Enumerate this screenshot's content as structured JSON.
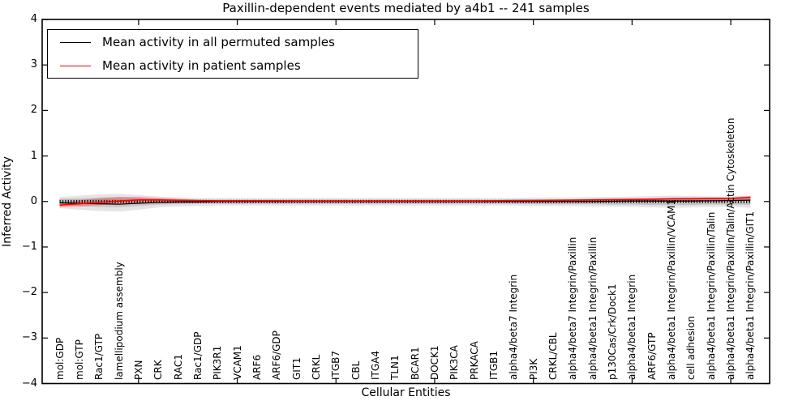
{
  "legend": {
    "items": [
      {
        "label": "Mean activity in all permuted samples",
        "color": "#000000"
      },
      {
        "label": "Mean activity in patient samples",
        "color": "#ff0000"
      }
    ]
  },
  "chart_data": {
    "type": "line",
    "title": "Paxillin-dependent events mediated by a4b1 -- 241 samples",
    "xlabel": "Cellular Entities",
    "ylabel": "Inferred Activity",
    "ylim": [
      -4,
      4
    ],
    "grid": false,
    "legend_position": "upper left",
    "yticks": [
      {
        "value": 4,
        "label": "4"
      },
      {
        "value": 3,
        "label": "3"
      },
      {
        "value": 2,
        "label": "2"
      },
      {
        "value": 1,
        "label": "1"
      },
      {
        "value": 0,
        "label": "0"
      },
      {
        "value": -1,
        "label": "−1"
      },
      {
        "value": -2,
        "label": "−2"
      },
      {
        "value": -3,
        "label": "−3"
      },
      {
        "value": -4,
        "label": "−4"
      }
    ],
    "xtick_mark_indices": [
      4,
      9,
      14,
      19,
      24,
      29,
      34
    ],
    "categories": [
      "mol:GDP",
      "mol:GTP",
      "Rac1/GTP",
      "lamellipodium assembly",
      "PXN",
      "CRK",
      "RAC1",
      "Rac1/GDP",
      "PIK3R1",
      "VCAM1",
      "ARF6",
      "ARF6/GDP",
      "GIT1",
      "CRKL",
      "ITGB7",
      "CBL",
      "ITGA4",
      "TLN1",
      "BCAR1",
      "DOCK1",
      "PIK3CA",
      "PRKACA",
      "ITGB1",
      "alpha4/beta7 Integrin",
      "PI3K",
      "CRKL/CBL",
      "alpha4/beta7 Integrin/Paxillin",
      "alpha4/beta1 Integrin/Paxillin",
      "p130Cas/Crk/Dock1",
      "alpha4/beta1 Integrin",
      "ARF6/GTP",
      "alpha4/beta1 Integrin/Paxillin/VCAM1",
      "cell adhesion",
      "alpha4/beta1 Integrin/Paxillin/Talin",
      "alpha4/beta1 Integrin/Paxillin/Talin/Actin Cytoskeleton",
      "alpha4/beta1 Integrin/Paxillin/GIT1"
    ],
    "series": [
      {
        "name": "Mean activity in all permuted samples",
        "color": "#000000",
        "width": 1.3,
        "values": [
          -0.03,
          -0.04,
          -0.05,
          -0.06,
          -0.04,
          -0.02,
          -0.01,
          -0.01,
          0,
          0,
          0,
          0,
          0,
          0,
          0,
          0,
          0,
          0,
          0,
          0,
          0,
          0,
          0,
          0,
          0,
          0,
          0,
          0,
          0.005,
          0.01,
          0.01,
          0.01,
          0.01,
          0.015,
          0.02,
          0.03
        ]
      },
      {
        "name": "Mean activity in patient samples",
        "color": "#ff0000",
        "width": 1.6,
        "values": [
          -0.08,
          -0.05,
          -0.02,
          0.01,
          0.035,
          0.035,
          0.025,
          0.02,
          0.015,
          0.015,
          0.015,
          0.015,
          0.01,
          0.01,
          0.01,
          0.01,
          0.01,
          0.01,
          0.01,
          0.01,
          0.01,
          0.01,
          0.015,
          0.02,
          0.02,
          0.025,
          0.03,
          0.035,
          0.04,
          0.045,
          0.05,
          0.06,
          0.06,
          0.065,
          0.065,
          0.09
        ]
      }
    ],
    "bands": [
      {
        "name": "permuted-std-outer",
        "color": "rgba(0,0,0,0.10)",
        "upper": [
          0.1,
          0.13,
          0.16,
          0.17,
          0.14,
          0.11,
          0.09,
          0.08,
          0.08,
          0.08,
          0.08,
          0.08,
          0.08,
          0.08,
          0.08,
          0.08,
          0.08,
          0.08,
          0.08,
          0.08,
          0.08,
          0.08,
          0.08,
          0.08,
          0.09,
          0.09,
          0.09,
          0.1,
          0.1,
          0.11,
          0.12,
          0.13,
          0.12,
          0.11,
          0.11,
          0.13
        ],
        "lower": [
          -0.15,
          -0.18,
          -0.21,
          -0.22,
          -0.18,
          -0.13,
          -0.11,
          -0.1,
          -0.09,
          -0.09,
          -0.09,
          -0.09,
          -0.09,
          -0.09,
          -0.09,
          -0.09,
          -0.09,
          -0.09,
          -0.09,
          -0.09,
          -0.09,
          -0.09,
          -0.09,
          -0.09,
          -0.1,
          -0.1,
          -0.1,
          -0.11,
          -0.11,
          -0.12,
          -0.13,
          -0.14,
          -0.13,
          -0.12,
          -0.12,
          -0.14
        ]
      },
      {
        "name": "permuted-std-inner",
        "color": "rgba(0,0,0,0.13)",
        "upper": [
          0.06,
          0.07,
          0.09,
          0.1,
          0.08,
          0.06,
          0.05,
          0.04,
          0.04,
          0.04,
          0.04,
          0.04,
          0.04,
          0.04,
          0.04,
          0.04,
          0.04,
          0.04,
          0.04,
          0.04,
          0.04,
          0.04,
          0.04,
          0.05,
          0.05,
          0.05,
          0.05,
          0.06,
          0.06,
          0.06,
          0.07,
          0.07,
          0.07,
          0.06,
          0.06,
          0.07
        ],
        "lower": [
          -0.08,
          -0.1,
          -0.12,
          -0.13,
          -0.1,
          -0.07,
          -0.06,
          -0.05,
          -0.05,
          -0.05,
          -0.05,
          -0.05,
          -0.05,
          -0.05,
          -0.05,
          -0.05,
          -0.05,
          -0.05,
          -0.05,
          -0.05,
          -0.05,
          -0.05,
          -0.05,
          -0.05,
          -0.06,
          -0.06,
          -0.06,
          -0.06,
          -0.07,
          -0.07,
          -0.08,
          -0.08,
          -0.08,
          -0.07,
          -0.07,
          -0.08
        ]
      },
      {
        "name": "patient-std",
        "color": "rgba(255,0,0,0.28)",
        "upper": [
          -0.02,
          0.03,
          0.07,
          0.1,
          0.1,
          0.08,
          0.06,
          0.04,
          0.03,
          0.03,
          0.03,
          0.03,
          0.03,
          0.03,
          0.03,
          0.03,
          0.03,
          0.03,
          0.03,
          0.03,
          0.03,
          0.03,
          0.03,
          0.03,
          0.04,
          0.04,
          0.04,
          0.05,
          0.06,
          0.06,
          0.07,
          0.08,
          0.09,
          0.09,
          0.09,
          0.12
        ],
        "lower": [
          -0.13,
          -0.11,
          -0.08,
          -0.04,
          -0.02,
          -0.01,
          -0.01,
          -0.01,
          -0.01,
          -0.01,
          -0.01,
          -0.01,
          -0.01,
          -0.01,
          -0.01,
          -0.01,
          -0.01,
          -0.01,
          -0.01,
          -0.01,
          -0.01,
          -0.01,
          -0.01,
          -0.01,
          -0.01,
          -0.01,
          0,
          0,
          0.01,
          0.01,
          0.02,
          0.02,
          0.02,
          0.03,
          0.03,
          0.05
        ]
      }
    ],
    "zero_line": {
      "value": 0,
      "style": "dotted",
      "color": "#000000"
    }
  }
}
